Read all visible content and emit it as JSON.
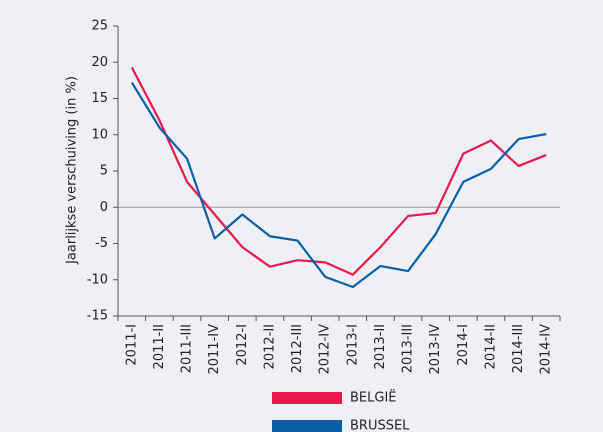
{
  "chart_data": {
    "type": "line",
    "y_label": "Jaarlijkse verschuiving (in %)",
    "categories": [
      "2011-I",
      "2011-II",
      "2011-III",
      "2011-IV",
      "2012-I",
      "2012-II",
      "2012-III",
      "2012-IV",
      "2013-I",
      "2013-II",
      "2013-III",
      "2013-IV",
      "2014-I",
      "2014-II",
      "2014-III",
      "2014-IV"
    ],
    "series": [
      {
        "name": "BELGIË",
        "color": "#e8194b",
        "values": [
          19.3,
          12.0,
          3.5,
          -1.0,
          -5.5,
          -8.2,
          -7.3,
          -7.6,
          -9.3,
          -5.5,
          -1.2,
          -0.8,
          7.4,
          9.2,
          5.7,
          7.2
        ]
      },
      {
        "name": "BRUSSEL",
        "color": "#0a5fa8",
        "values": [
          17.2,
          11.0,
          6.7,
          -4.3,
          -1.0,
          -4.0,
          -4.6,
          -9.6,
          -11.0,
          -8.1,
          -8.8,
          -3.7,
          3.5,
          5.3,
          9.4,
          10.1
        ]
      }
    ],
    "ylim": [
      -15,
      25
    ],
    "yticks": [
      -15,
      -10,
      -5,
      0,
      5,
      10,
      15,
      20,
      25
    ]
  }
}
